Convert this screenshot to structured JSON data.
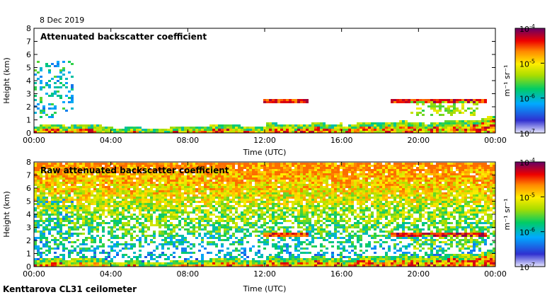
{
  "date": "8 Dec 2019",
  "footer": "Kenttarova CL31 ceilometer",
  "chart_data": [
    {
      "type": "heatmap",
      "title": "Attenuated backscatter coefficient",
      "xlabel": "Time (UTC)",
      "ylabel": "Height (km)",
      "xlim": [
        0,
        24
      ],
      "ylim": [
        0,
        8
      ],
      "xticks": [
        "00:00",
        "04:00",
        "08:00",
        "12:00",
        "16:00",
        "20:00",
        "00:00"
      ],
      "yticks": [
        "0",
        "1",
        "2",
        "3",
        "4",
        "5",
        "6",
        "7",
        "8"
      ],
      "colorbar": {
        "label": "m⁻¹ sr⁻¹",
        "scale": "log",
        "range": [
          1e-07,
          0.0001
        ],
        "ticks": [
          {
            "base": "10",
            "exp": "-4"
          },
          {
            "base": "10",
            "exp": "-5"
          },
          {
            "base": "10",
            "exp": "-6"
          },
          {
            "base": "10",
            "exp": "-7"
          }
        ]
      }
    },
    {
      "type": "heatmap",
      "title": "Raw attenuated backscatter coefficient",
      "xlabel": "Time (UTC)",
      "ylabel": "Height (km)",
      "xlim": [
        0,
        24
      ],
      "ylim": [
        0,
        8
      ],
      "xticks": [
        "00:00",
        "04:00",
        "08:00",
        "12:00",
        "16:00",
        "20:00",
        "00:00"
      ],
      "yticks": [
        "0",
        "1",
        "2",
        "3",
        "4",
        "5",
        "6",
        "7",
        "8"
      ],
      "colorbar": {
        "label": "m⁻¹ sr⁻¹",
        "scale": "log",
        "range": [
          1e-07,
          0.0001
        ],
        "ticks": [
          {
            "base": "10",
            "exp": "-4"
          },
          {
            "base": "10",
            "exp": "-5"
          },
          {
            "base": "10",
            "exp": "-6"
          },
          {
            "base": "10",
            "exp": "-7"
          }
        ]
      }
    }
  ]
}
